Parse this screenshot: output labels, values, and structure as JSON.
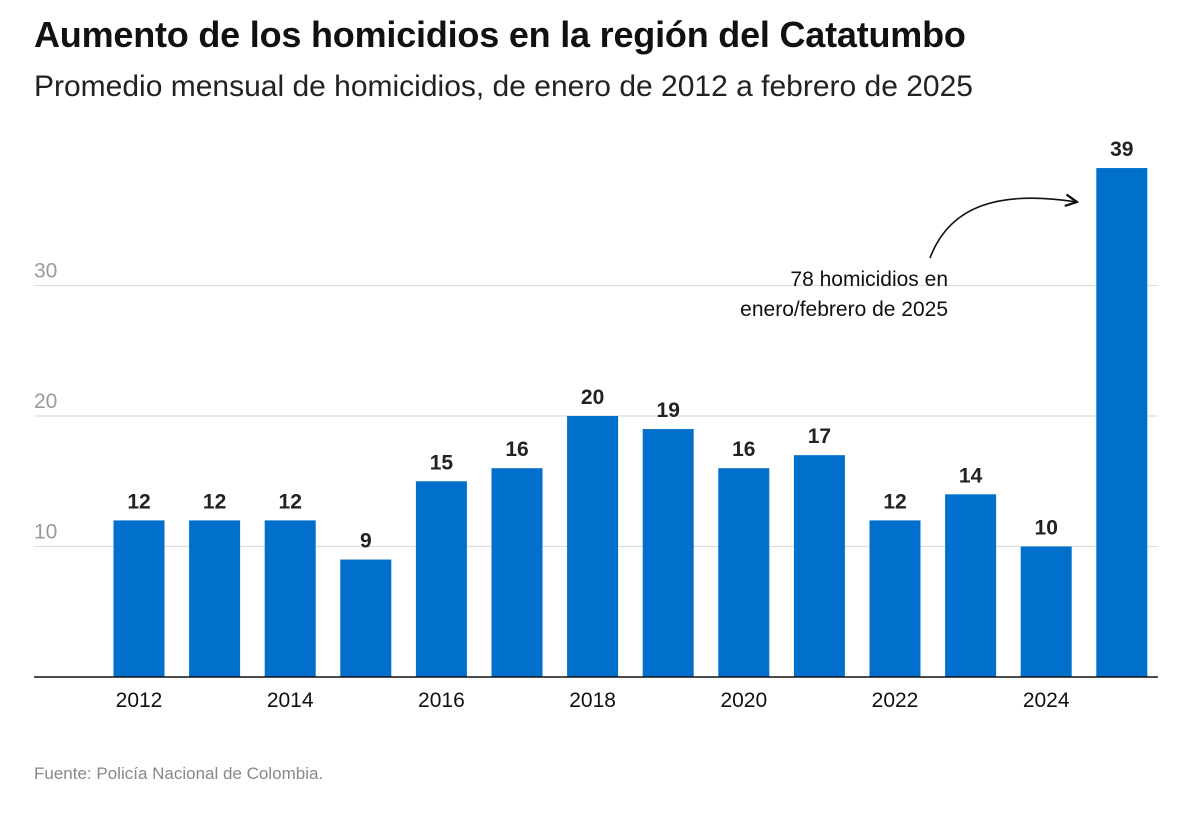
{
  "header": {
    "title": "Aumento de los homicidios en la región del Catatumbo",
    "subtitle": "Promedio mensual de homicidios, de enero de 2012 a febrero de 2025"
  },
  "footer": {
    "source": "Fuente: Policía Nacional de Colombia."
  },
  "colors": {
    "bar": "#0070cc",
    "grid": "#dddddd",
    "axis": "#111111"
  },
  "chart_data": {
    "type": "bar",
    "categories": [
      "2012",
      "2013",
      "2014",
      "2015",
      "2016",
      "2017",
      "2018",
      "2019",
      "2020",
      "2021",
      "2022",
      "2023",
      "2024",
      "2025"
    ],
    "values": [
      12,
      12,
      12,
      9,
      15,
      16,
      20,
      19,
      16,
      17,
      12,
      14,
      10,
      39
    ],
    "x_tick_labels": [
      "2012",
      "2014",
      "2016",
      "2018",
      "2020",
      "2022",
      "2024"
    ],
    "y_ticks": [
      10,
      20,
      30
    ],
    "ylim": [
      0,
      40
    ],
    "grid": true,
    "title": "Aumento de los homicidios en la región del Catatumbo",
    "subtitle": "Promedio mensual de homicidios, de enero de 2012 a febrero de 2025",
    "xlabel": "",
    "ylabel": "",
    "annotation": {
      "target_category": "2025",
      "lines": [
        "78 homicidios en",
        "enero/febrero de 2025"
      ]
    }
  }
}
